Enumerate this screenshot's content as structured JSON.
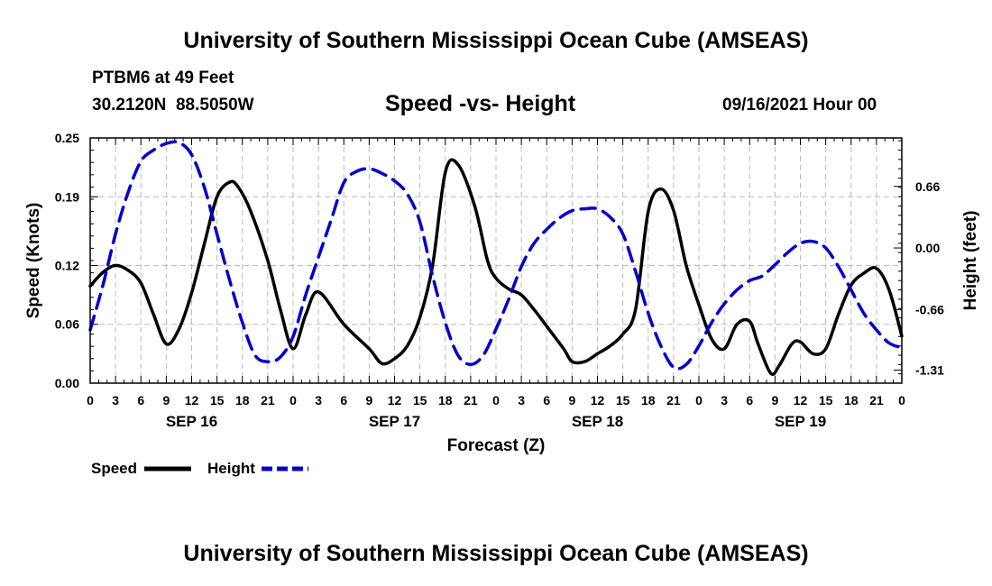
{
  "header": {
    "title": "University of Southern Mississippi Ocean Cube (AMSEAS)",
    "station": "PTBM6 at 49 Feet",
    "coords": "30.2120N  88.5050W",
    "date": "09/16/2021 Hour 00"
  },
  "footer": {
    "title": "University of Southern Mississippi Ocean Cube (AMSEAS)"
  },
  "legend": {
    "speed_label": "Speed",
    "height_label": "Height"
  },
  "colors": {
    "speed": "#000000",
    "height": "#0000cc",
    "grid": "#bbbbbb"
  },
  "chart_data": {
    "type": "line",
    "title": "Speed -vs- Height",
    "xlabel": "Forecast (Z)",
    "ylabel": "Speed (Knots)",
    "y2label": "Height (feet)",
    "xlim": [
      0,
      96
    ],
    "ylim": [
      0,
      0.25
    ],
    "y2lim": [
      -1.45,
      1.18
    ],
    "x_tick_labels": [
      "0",
      "3",
      "6",
      "9",
      "12",
      "15",
      "18",
      "21",
      "0",
      "3",
      "6",
      "9",
      "12",
      "15",
      "18",
      "21",
      "0",
      "3",
      "6",
      "9",
      "12",
      "15",
      "18",
      "21",
      "0",
      "3",
      "6",
      "9",
      "12",
      "15",
      "18",
      "21",
      "0"
    ],
    "day_labels": [
      {
        "label": "SEP 16",
        "x": 12
      },
      {
        "label": "SEP 17",
        "x": 36
      },
      {
        "label": "SEP 18",
        "x": 60
      },
      {
        "label": "SEP 19",
        "x": 84
      }
    ],
    "y_ticks": [
      {
        "value": 0.0,
        "label": "0.00"
      },
      {
        "value": 0.06,
        "label": "0.06"
      },
      {
        "value": 0.12,
        "label": "0.12"
      },
      {
        "value": 0.19,
        "label": "0.19"
      },
      {
        "value": 0.25,
        "label": "0.25"
      }
    ],
    "y2_ticks": [
      {
        "value": 0.66,
        "label": "0.66"
      },
      {
        "value": 0.0,
        "label": "0.00"
      },
      {
        "value": -0.66,
        "label": "-0.66"
      },
      {
        "value": -1.31,
        "label": "-1.31"
      }
    ],
    "series": [
      {
        "name": "Speed",
        "axis": "left",
        "style": "solid",
        "x": [
          0,
          1.5,
          3,
          4.5,
          6,
          7.5,
          9,
          10.5,
          12,
          13.5,
          15,
          16.5,
          17.5,
          19,
          21,
          22.5,
          24,
          25.5,
          27,
          30,
          33,
          34.5,
          36,
          37.5,
          39,
          40.5,
          42,
          43.5,
          45.5,
          47,
          48,
          49.5,
          51,
          52.5,
          54,
          56,
          57,
          58.5,
          60,
          61.5,
          63,
          64.5,
          66,
          67.5,
          69,
          70.5,
          72,
          73.5,
          75,
          76.5,
          78,
          79,
          80.5,
          81.5,
          83,
          84,
          85.5,
          87,
          88.5,
          90,
          91.5,
          93,
          94.5,
          96
        ],
        "values": [
          0.099,
          0.113,
          0.12,
          0.115,
          0.102,
          0.07,
          0.04,
          0.055,
          0.092,
          0.142,
          0.19,
          0.205,
          0.2,
          0.175,
          0.125,
          0.075,
          0.035,
          0.07,
          0.093,
          0.06,
          0.035,
          0.02,
          0.025,
          0.038,
          0.067,
          0.12,
          0.215,
          0.223,
          0.18,
          0.125,
          0.107,
          0.096,
          0.09,
          0.075,
          0.058,
          0.035,
          0.022,
          0.022,
          0.03,
          0.038,
          0.05,
          0.075,
          0.175,
          0.198,
          0.176,
          0.12,
          0.08,
          0.045,
          0.035,
          0.06,
          0.063,
          0.04,
          0.01,
          0.018,
          0.04,
          0.042,
          0.03,
          0.035,
          0.07,
          0.1,
          0.112,
          0.117,
          0.095,
          0.048
        ]
      },
      {
        "name": "Height",
        "axis": "right",
        "style": "dashed",
        "x": [
          0,
          1.5,
          3,
          4.5,
          6,
          7.5,
          9,
          10.5,
          12,
          13.5,
          15,
          16.5,
          18,
          19.5,
          21,
          22.5,
          24,
          25.5,
          27,
          28.5,
          30,
          31.5,
          33,
          34.5,
          36,
          37.5,
          39,
          40.5,
          42,
          43.5,
          45,
          46.5,
          48,
          49.5,
          51,
          52.5,
          54,
          55.5,
          57,
          58.5,
          60,
          61.5,
          63,
          64.5,
          66,
          67.5,
          69,
          70.5,
          72,
          73.5,
          75,
          76.5,
          78,
          79.5,
          81,
          82.5,
          84,
          85.5,
          87,
          88.5,
          90,
          91.5,
          93,
          94.5,
          96
        ],
        "values": [
          -0.88,
          -0.4,
          0.15,
          0.6,
          0.93,
          1.05,
          1.12,
          1.13,
          1.0,
          0.65,
          0.15,
          -0.35,
          -0.8,
          -1.15,
          -1.22,
          -1.17,
          -0.95,
          -0.5,
          -0.1,
          0.3,
          0.7,
          0.82,
          0.85,
          0.8,
          0.72,
          0.58,
          0.28,
          -0.3,
          -0.8,
          -1.15,
          -1.25,
          -1.15,
          -0.87,
          -0.55,
          -0.2,
          0.05,
          0.2,
          0.32,
          0.4,
          0.42,
          0.42,
          0.33,
          0.15,
          -0.25,
          -0.7,
          -1.05,
          -1.28,
          -1.25,
          -1.05,
          -0.8,
          -0.6,
          -0.45,
          -0.35,
          -0.3,
          -0.18,
          -0.05,
          0.05,
          0.07,
          0.0,
          -0.2,
          -0.45,
          -0.7,
          -0.88,
          -1.02,
          -1.07
        ]
      }
    ]
  }
}
